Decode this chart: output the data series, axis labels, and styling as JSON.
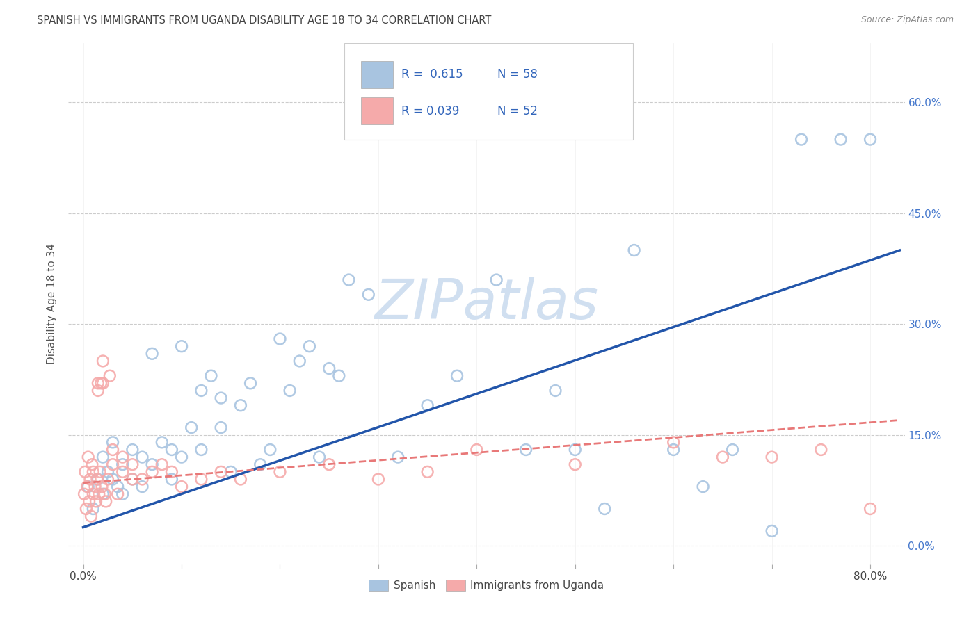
{
  "title": "SPANISH VS IMMIGRANTS FROM UGANDA DISABILITY AGE 18 TO 34 CORRELATION CHART",
  "source": "Source: ZipAtlas.com",
  "ylabel": "Disability Age 18 to 34",
  "x_ticks": [
    0.0,
    0.1,
    0.2,
    0.3,
    0.4,
    0.5,
    0.6,
    0.7,
    0.8
  ],
  "x_tick_labels_show": [
    "0.0%",
    "",
    "",
    "",
    "",
    "",
    "",
    "",
    "80.0%"
  ],
  "y_ticks": [
    0.0,
    0.15,
    0.3,
    0.45,
    0.6
  ],
  "y_tick_labels": [
    "0.0%",
    "15.0%",
    "30.0%",
    "45.0%",
    "60.0%"
  ],
  "xlim": [
    -0.015,
    0.835
  ],
  "ylim": [
    -0.025,
    0.68
  ],
  "legend_labels": [
    "Spanish",
    "Immigrants from Uganda"
  ],
  "R_blue": "0.615",
  "N_blue": "58",
  "R_pink": "0.039",
  "N_pink": "52",
  "blue_color": "#A8C4E0",
  "pink_color": "#F5AAAA",
  "blue_line_color": "#2255AA",
  "pink_line_color": "#E87878",
  "watermark": "ZIPatlas",
  "watermark_color": "#D0DFF0",
  "background_color": "#FFFFFF",
  "grid_color": "#CCCCCC",
  "blue_scatter_x": [
    0.005,
    0.01,
    0.015,
    0.02,
    0.02,
    0.025,
    0.03,
    0.03,
    0.035,
    0.04,
    0.04,
    0.05,
    0.05,
    0.06,
    0.06,
    0.07,
    0.07,
    0.08,
    0.09,
    0.09,
    0.1,
    0.1,
    0.11,
    0.12,
    0.12,
    0.13,
    0.14,
    0.14,
    0.15,
    0.16,
    0.17,
    0.18,
    0.19,
    0.2,
    0.21,
    0.22,
    0.23,
    0.24,
    0.25,
    0.26,
    0.27,
    0.29,
    0.32,
    0.35,
    0.38,
    0.42,
    0.45,
    0.48,
    0.5,
    0.53,
    0.56,
    0.6,
    0.63,
    0.66,
    0.7,
    0.73,
    0.77,
    0.8
  ],
  "blue_scatter_y": [
    0.08,
    0.05,
    0.09,
    0.12,
    0.07,
    0.1,
    0.09,
    0.14,
    0.08,
    0.11,
    0.07,
    0.13,
    0.09,
    0.12,
    0.08,
    0.26,
    0.11,
    0.14,
    0.13,
    0.09,
    0.27,
    0.12,
    0.16,
    0.21,
    0.13,
    0.23,
    0.2,
    0.16,
    0.1,
    0.19,
    0.22,
    0.11,
    0.13,
    0.28,
    0.21,
    0.25,
    0.27,
    0.12,
    0.24,
    0.23,
    0.36,
    0.34,
    0.12,
    0.19,
    0.23,
    0.36,
    0.13,
    0.21,
    0.13,
    0.05,
    0.4,
    0.13,
    0.08,
    0.13,
    0.02,
    0.55,
    0.55,
    0.55
  ],
  "pink_scatter_x": [
    0.001,
    0.002,
    0.003,
    0.004,
    0.005,
    0.006,
    0.007,
    0.008,
    0.009,
    0.01,
    0.01,
    0.012,
    0.013,
    0.014,
    0.015,
    0.015,
    0.016,
    0.017,
    0.018,
    0.019,
    0.02,
    0.02,
    0.022,
    0.023,
    0.025,
    0.027,
    0.03,
    0.03,
    0.035,
    0.04,
    0.04,
    0.05,
    0.05,
    0.06,
    0.07,
    0.08,
    0.09,
    0.1,
    0.12,
    0.14,
    0.16,
    0.2,
    0.25,
    0.3,
    0.35,
    0.4,
    0.5,
    0.6,
    0.65,
    0.7,
    0.75,
    0.8
  ],
  "pink_scatter_y": [
    0.07,
    0.1,
    0.05,
    0.08,
    0.12,
    0.06,
    0.09,
    0.04,
    0.11,
    0.07,
    0.1,
    0.08,
    0.06,
    0.09,
    0.21,
    0.22,
    0.07,
    0.1,
    0.22,
    0.08,
    0.22,
    0.25,
    0.07,
    0.06,
    0.09,
    0.23,
    0.11,
    0.13,
    0.07,
    0.1,
    0.12,
    0.09,
    0.11,
    0.09,
    0.1,
    0.11,
    0.1,
    0.08,
    0.09,
    0.1,
    0.09,
    0.1,
    0.11,
    0.09,
    0.1,
    0.13,
    0.11,
    0.14,
    0.12,
    0.12,
    0.13,
    0.05
  ],
  "blue_line_x": [
    0.0,
    0.83
  ],
  "blue_line_y": [
    0.025,
    0.4
  ],
  "pink_line_x": [
    0.0,
    0.83
  ],
  "pink_line_y": [
    0.085,
    0.17
  ]
}
